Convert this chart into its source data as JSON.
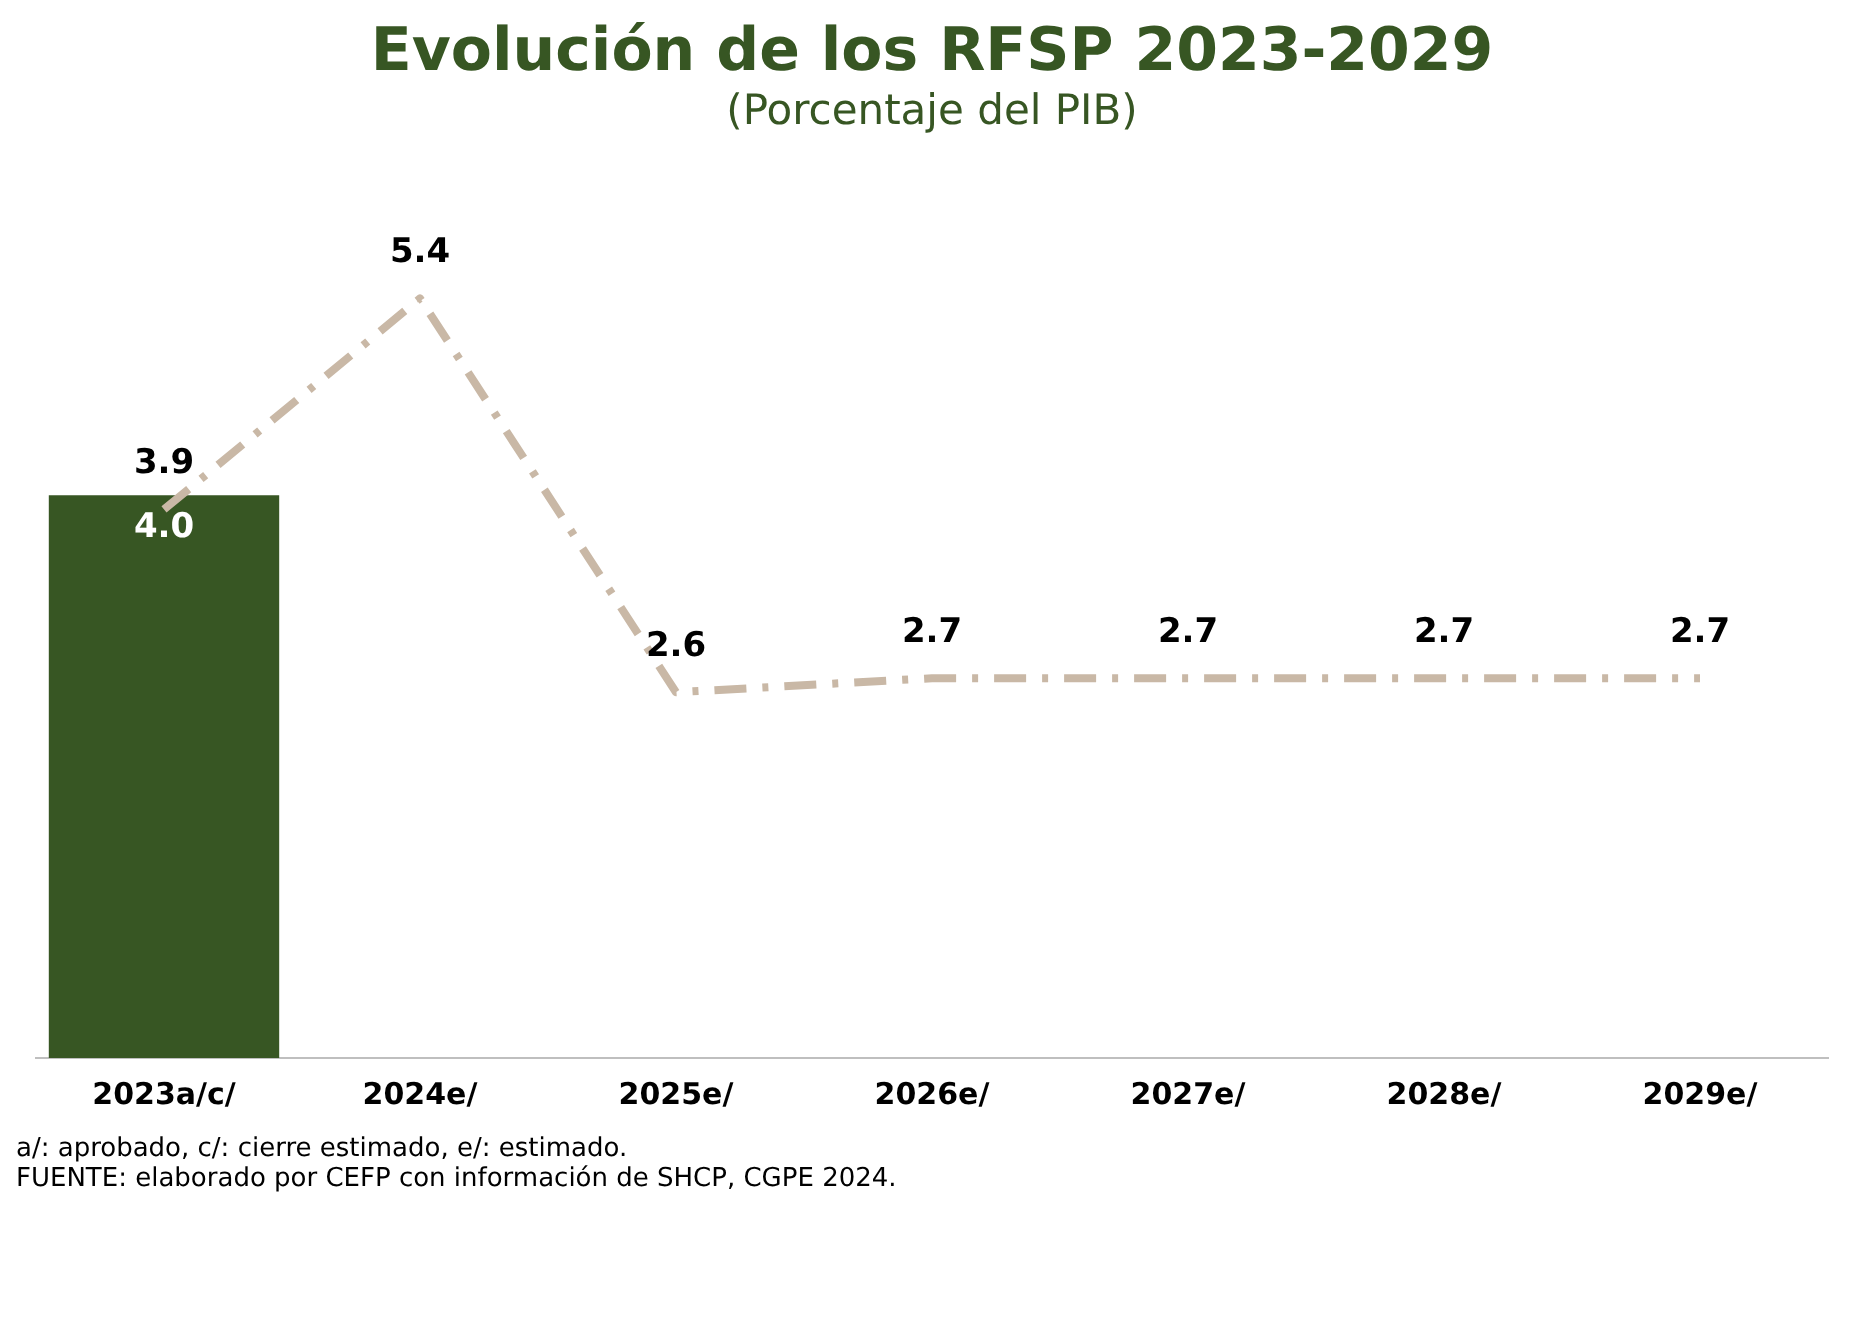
{
  "chart_data": {
    "type": "bar",
    "title": "Evolución de los RFSP 2023-2029",
    "subtitle": "(Porcentaje del PIB)",
    "categories": [
      "2023a/c/",
      "2024e/",
      "2025e/",
      "2026e/",
      "2027e/",
      "2028e/",
      "2029e/"
    ],
    "series": [
      {
        "color": "#375623",
        "values": [
          4.0,
          null,
          null,
          null,
          null,
          null,
          null
        ],
        "value_labels": [
          "4.0",
          null,
          null,
          null,
          null,
          null,
          null
        ]
      },
      {
        "type": "line",
        "color": "#c9b8a6",
        "values": [
          3.9,
          5.4,
          2.6,
          2.7,
          2.7,
          2.7,
          2.7
        ],
        "value_labels": [
          "3.9",
          "5.4",
          "2.6",
          "2.7",
          "2.7",
          "2.7",
          "2.7"
        ]
      }
    ],
    "grid": false,
    "legend": false,
    "marker": "none",
    "line_style": "dashed",
    "tick_labels": "x",
    "annotations": [
      "a/: aprobado, c/: cierre estimado, e/: estimado.",
      "FUENTE: elaborado por CEFP con información de SHCP, CGPE 2024."
    ]
  }
}
